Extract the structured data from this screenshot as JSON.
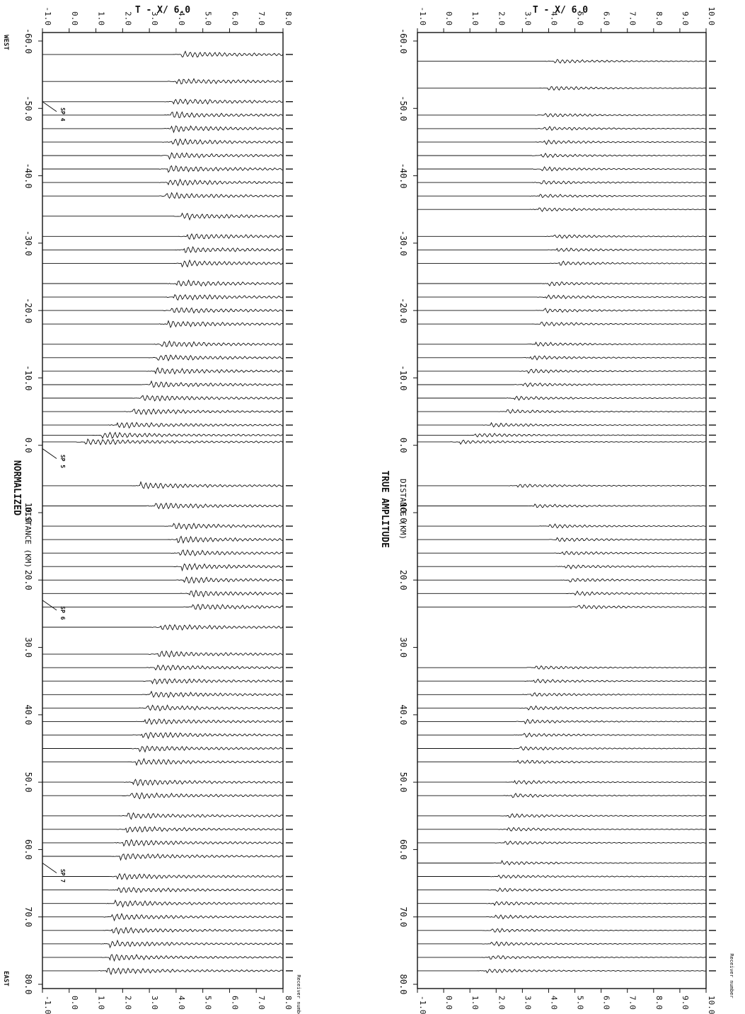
{
  "panels": [
    {
      "id": "normalized",
      "top_axis_title": "T - X/ 6.0",
      "amplitude_label": "NORMALIZED",
      "distance_label": "DISTANCE (KM)",
      "end_labels": [
        "WEST",
        "EAST"
      ],
      "station_header": "Receiver number",
      "time_ticks": [
        "-1.0",
        "0.0",
        "1.0",
        "2.0",
        "3.0",
        "4.0",
        "5.0",
        "6.0",
        "7.0",
        "8.0"
      ],
      "distance_ticks": [
        "-60.0",
        "-50.0",
        "-40.0",
        "-30.0",
        "-20.0",
        "-10.0",
        "0.0",
        "10.0",
        "20.0",
        "30.0",
        "40.0",
        "50.0",
        "60.0",
        "70.0",
        "80.0"
      ],
      "shot_points": [
        "SP 4",
        "SP 5",
        "SP 6",
        "SP 7"
      ]
    },
    {
      "id": "true_amplitude",
      "top_axis_title": "T - X/ 6.0",
      "amplitude_label": "TRUE AMPLITUDE",
      "distance_label": "DISTANCE (KM)",
      "station_header": "Receiver number",
      "time_ticks": [
        "-1.0",
        "0.0",
        "1.0",
        "2.0",
        "3.0",
        "4.0",
        "5.0",
        "6.0",
        "7.0",
        "8.0",
        "9.0",
        "10.0"
      ],
      "distance_ticks": [
        "-60.0",
        "-50.0",
        "-40.0",
        "-30.0",
        "-20.0",
        "-10.0",
        "0.0",
        "10.0",
        "20.0",
        "30.0",
        "40.0",
        "50.0",
        "60.0",
        "70.0",
        "80.0"
      ]
    }
  ],
  "chart_data": [
    {
      "type": "line",
      "title": "",
      "xlabel": "DISTANCE (KM)",
      "ylabel": "T - X/ 6.0",
      "xlim": [
        -60,
        80
      ],
      "ylim": [
        -1,
        8
      ],
      "grid": false,
      "amplitude": "NORMALIZED",
      "traces": [
        {
          "x": -58,
          "arrival": 4.2
        },
        {
          "x": -54,
          "arrival": 4.0
        },
        {
          "x": -51,
          "arrival": 3.9
        },
        {
          "x": -49,
          "arrival": 3.8
        },
        {
          "x": -47,
          "arrival": 3.8
        },
        {
          "x": -45,
          "arrival": 3.8
        },
        {
          "x": -43,
          "arrival": 3.7
        },
        {
          "x": -41,
          "arrival": 3.7
        },
        {
          "x": -39,
          "arrival": 3.7
        },
        {
          "x": -37,
          "arrival": 3.6
        },
        {
          "x": -34,
          "arrival": 4.2
        },
        {
          "x": -31,
          "arrival": 4.4
        },
        {
          "x": -29,
          "arrival": 4.3
        },
        {
          "x": -27,
          "arrival": 4.2
        },
        {
          "x": -24,
          "arrival": 4.0
        },
        {
          "x": -22,
          "arrival": 3.9
        },
        {
          "x": -20,
          "arrival": 3.8
        },
        {
          "x": -18,
          "arrival": 3.7
        },
        {
          "x": -15,
          "arrival": 3.4
        },
        {
          "x": -13,
          "arrival": 3.3
        },
        {
          "x": -11,
          "arrival": 3.2
        },
        {
          "x": -9,
          "arrival": 3.0
        },
        {
          "x": -7,
          "arrival": 2.7
        },
        {
          "x": -5,
          "arrival": 2.4
        },
        {
          "x": -3,
          "arrival": 1.8
        },
        {
          "x": -1.5,
          "arrival": 1.2
        },
        {
          "x": -0.5,
          "arrival": 0.6
        },
        {
          "x": 6,
          "arrival": 2.6
        },
        {
          "x": 9,
          "arrival": 3.2
        },
        {
          "x": 12,
          "arrival": 3.9
        },
        {
          "x": 14,
          "arrival": 4.0
        },
        {
          "x": 16,
          "arrival": 4.1
        },
        {
          "x": 18,
          "arrival": 4.2
        },
        {
          "x": 20,
          "arrival": 4.3
        },
        {
          "x": 22,
          "arrival": 4.5
        },
        {
          "x": 24,
          "arrival": 4.6
        },
        {
          "x": 27,
          "arrival": 3.4
        },
        {
          "x": 31,
          "arrival": 3.3
        },
        {
          "x": 33,
          "arrival": 3.2
        },
        {
          "x": 35,
          "arrival": 3.1
        },
        {
          "x": 37,
          "arrival": 3.0
        },
        {
          "x": 39,
          "arrival": 2.9
        },
        {
          "x": 41,
          "arrival": 2.8
        },
        {
          "x": 43,
          "arrival": 2.7
        },
        {
          "x": 45,
          "arrival": 2.6
        },
        {
          "x": 47,
          "arrival": 2.5
        },
        {
          "x": 50,
          "arrival": 2.4
        },
        {
          "x": 52,
          "arrival": 2.3
        },
        {
          "x": 55,
          "arrival": 2.2
        },
        {
          "x": 57,
          "arrival": 2.1
        },
        {
          "x": 59,
          "arrival": 2.0
        },
        {
          "x": 61,
          "arrival": 1.9
        },
        {
          "x": 64,
          "arrival": 1.8
        },
        {
          "x": 66,
          "arrival": 1.8
        },
        {
          "x": 68,
          "arrival": 1.7
        },
        {
          "x": 70,
          "arrival": 1.6
        },
        {
          "x": 72,
          "arrival": 1.6
        },
        {
          "x": 74,
          "arrival": 1.5
        },
        {
          "x": 76,
          "arrival": 1.5
        },
        {
          "x": 78,
          "arrival": 1.4
        }
      ]
    },
    {
      "type": "line",
      "title": "",
      "xlabel": "DISTANCE (KM)",
      "ylabel": "T - X/ 6.0",
      "xlim": [
        -60,
        80
      ],
      "ylim": [
        -1,
        10
      ],
      "grid": false,
      "amplitude": "TRUE AMPLITUDE",
      "traces": [
        {
          "x": -57,
          "arrival": 4.2
        },
        {
          "x": -53,
          "arrival": 4.0
        },
        {
          "x": -49,
          "arrival": 3.8
        },
        {
          "x": -47,
          "arrival": 3.8
        },
        {
          "x": -45,
          "arrival": 3.8
        },
        {
          "x": -43,
          "arrival": 3.7
        },
        {
          "x": -41,
          "arrival": 3.7
        },
        {
          "x": -39,
          "arrival": 3.7
        },
        {
          "x": -37,
          "arrival": 3.6
        },
        {
          "x": -35,
          "arrival": 3.6
        },
        {
          "x": -31,
          "arrival": 4.2
        },
        {
          "x": -29,
          "arrival": 4.3
        },
        {
          "x": -27,
          "arrival": 4.4
        },
        {
          "x": -24,
          "arrival": 4.0
        },
        {
          "x": -22,
          "arrival": 3.9
        },
        {
          "x": -20,
          "arrival": 3.8
        },
        {
          "x": -18,
          "arrival": 3.7
        },
        {
          "x": -15,
          "arrival": 3.5
        },
        {
          "x": -13,
          "arrival": 3.3
        },
        {
          "x": -11,
          "arrival": 3.2
        },
        {
          "x": -9,
          "arrival": 3.0
        },
        {
          "x": -7,
          "arrival": 2.7
        },
        {
          "x": -5,
          "arrival": 2.4
        },
        {
          "x": -3,
          "arrival": 1.8
        },
        {
          "x": -1.5,
          "arrival": 1.2
        },
        {
          "x": -0.5,
          "arrival": 0.6
        },
        {
          "x": 6,
          "arrival": 2.8
        },
        {
          "x": 9,
          "arrival": 3.4
        },
        {
          "x": 12,
          "arrival": 4.0
        },
        {
          "x": 14,
          "arrival": 4.3
        },
        {
          "x": 16,
          "arrival": 4.5
        },
        {
          "x": 18,
          "arrival": 4.6
        },
        {
          "x": 20,
          "arrival": 4.8
        },
        {
          "x": 22,
          "arrival": 5.0
        },
        {
          "x": 24,
          "arrival": 5.1
        },
        {
          "x": 33,
          "arrival": 3.5
        },
        {
          "x": 35,
          "arrival": 3.4
        },
        {
          "x": 37,
          "arrival": 3.3
        },
        {
          "x": 39,
          "arrival": 3.2
        },
        {
          "x": 41,
          "arrival": 3.1
        },
        {
          "x": 43,
          "arrival": 3.0
        },
        {
          "x": 45,
          "arrival": 2.9
        },
        {
          "x": 47,
          "arrival": 2.8
        },
        {
          "x": 50,
          "arrival": 2.7
        },
        {
          "x": 52,
          "arrival": 2.6
        },
        {
          "x": 55,
          "arrival": 2.5
        },
        {
          "x": 57,
          "arrival": 2.4
        },
        {
          "x": 59,
          "arrival": 2.3
        },
        {
          "x": 62,
          "arrival": 2.2
        },
        {
          "x": 64,
          "arrival": 2.1
        },
        {
          "x": 66,
          "arrival": 2.0
        },
        {
          "x": 68,
          "arrival": 1.9
        },
        {
          "x": 70,
          "arrival": 1.9
        },
        {
          "x": 72,
          "arrival": 1.8
        },
        {
          "x": 74,
          "arrival": 1.8
        },
        {
          "x": 76,
          "arrival": 1.7
        },
        {
          "x": 78,
          "arrival": 1.6
        }
      ]
    }
  ]
}
